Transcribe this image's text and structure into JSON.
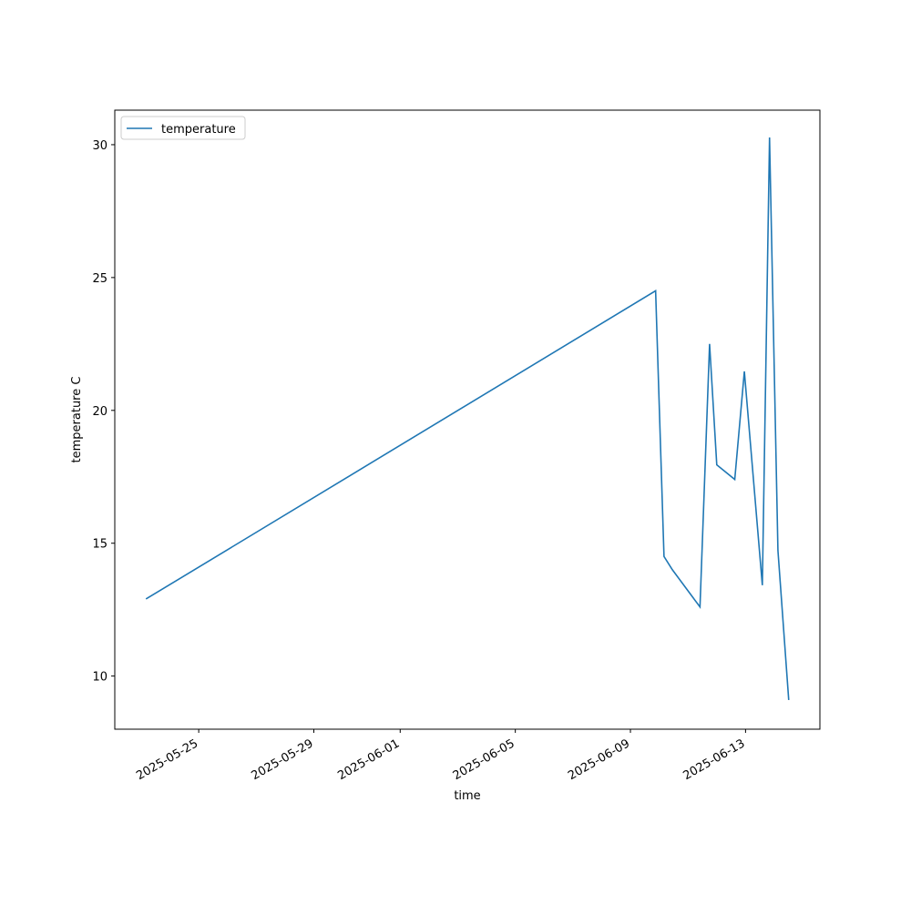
{
  "chart_data": {
    "type": "line",
    "x_label": "time",
    "y_label": "temperature C",
    "x": [
      "2025-05-23T04:00",
      "2025-06-09T21:00",
      "2025-06-10T04:00",
      "2025-06-10T11:00",
      "2025-06-11T10:00",
      "2025-06-11T18:00",
      "2025-06-12T00:00",
      "2025-06-12T15:00",
      "2025-06-12T23:00",
      "2025-06-13T14:00",
      "2025-06-13T20:00",
      "2025-06-14T03:00",
      "2025-06-14T12:00"
    ],
    "series": [
      {
        "name": "temperature",
        "color": "#1f77b4",
        "values": [
          12.9,
          24.5,
          14.5,
          14.0,
          12.6,
          22.5,
          17.95,
          17.4,
          21.47,
          13.42,
          30.27,
          14.73,
          9.1
        ]
      }
    ],
    "xlim": [
      "2025-05-22T02:00",
      "2025-06-15T14:00"
    ],
    "xticks": [
      "2025-05-25",
      "2025-05-29",
      "2025-06-01",
      "2025-06-05",
      "2025-06-09",
      "2025-06-13"
    ],
    "ylim": [
      8.0,
      31.3
    ],
    "yticks": [
      10,
      15,
      20,
      25,
      30
    ],
    "legend": "upper-left",
    "grid": false
  }
}
